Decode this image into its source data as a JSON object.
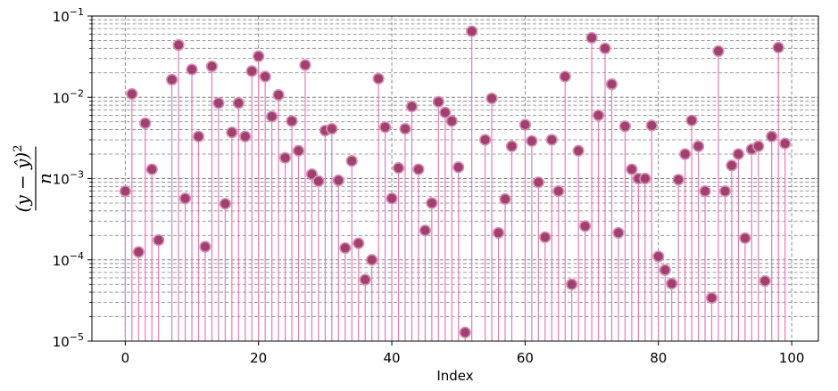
{
  "chart_data": {
    "type": "stem",
    "xlabel": "Index",
    "ylabel": {
      "numerator": "(y − ŷ)",
      "exponent": "2",
      "denominator": "n"
    },
    "yscale": "log",
    "xlim": [
      -5,
      104
    ],
    "ylim": [
      1e-05,
      0.1
    ],
    "x_ticks": [
      0,
      20,
      40,
      60,
      80,
      100
    ],
    "y_ticks": [
      {
        "value": 1e-05,
        "base": "10",
        "exp": "−5"
      },
      {
        "value": 0.0001,
        "base": "10",
        "exp": "−4"
      },
      {
        "value": 0.001,
        "base": "10",
        "exp": "−3"
      },
      {
        "value": 0.01,
        "base": "10",
        "exp": "−2"
      },
      {
        "value": 0.1,
        "base": "10",
        "exp": "−1"
      }
    ],
    "grid": "major and minor, dashed gray",
    "colors": {
      "stem": "#e07fb8",
      "marker_fill": "#a0406e",
      "marker_edge": "#d88fb6",
      "grid": "#808080"
    },
    "x": [
      0,
      1,
      2,
      3,
      4,
      5,
      6,
      7,
      8,
      9,
      10,
      11,
      12,
      13,
      14,
      15,
      16,
      17,
      18,
      19,
      20,
      21,
      22,
      23,
      24,
      25,
      26,
      27,
      28,
      29,
      30,
      31,
      32,
      33,
      34,
      35,
      36,
      37,
      38,
      39,
      40,
      41,
      42,
      43,
      44,
      45,
      46,
      47,
      48,
      49,
      50,
      51,
      52,
      53,
      54,
      55,
      56,
      57,
      58,
      59,
      60,
      61,
      62,
      63,
      64,
      65,
      66,
      67,
      68,
      69,
      70,
      71,
      72,
      73,
      74,
      75,
      76,
      77,
      78,
      79,
      80,
      81,
      82,
      83,
      84,
      85,
      86,
      87,
      88,
      89,
      90,
      91,
      92,
      93,
      94,
      95,
      96,
      97,
      98,
      99
    ],
    "values": [
      0.0007,
      0.011,
      0.000125,
      0.0048,
      0.0013,
      0.000175,
      null,
      0.0165,
      0.044,
      0.00057,
      0.022,
      0.0033,
      0.000145,
      0.024,
      0.0085,
      0.00049,
      0.0037,
      0.0085,
      0.0033,
      0.021,
      0.032,
      0.018,
      0.0058,
      0.0107,
      0.0018,
      0.0051,
      0.0022,
      0.025,
      0.00113,
      0.00093,
      0.0039,
      0.0041,
      0.00095,
      0.00014,
      0.00165,
      0.00016,
      5.7e-05,
      0.0001,
      0.017,
      0.0043,
      0.00057,
      0.00135,
      0.0041,
      0.0077,
      0.0013,
      0.00023,
      0.0005,
      0.0088,
      0.0065,
      0.0051,
      0.00138,
      1.28e-05,
      0.065,
      null,
      0.003,
      0.0097,
      0.000215,
      0.00056,
      0.0025,
      null,
      0.0046,
      0.0029,
      0.0009,
      0.00019,
      0.003,
      0.0007,
      0.018,
      5e-05,
      0.0022,
      0.00026,
      0.054,
      0.006,
      0.04,
      0.0145,
      0.000215,
      0.0044,
      0.0013,
      0.001,
      0.001,
      0.0045,
      0.00011,
      7.5e-05,
      5.1e-05,
      0.00097,
      0.002,
      0.0052,
      0.0025,
      0.0007,
      3.4e-05,
      0.037,
      0.0007,
      0.00145,
      0.002,
      0.000185,
      0.0023,
      0.0025,
      5.5e-05,
      0.0033,
      0.041,
      0.0027
    ]
  }
}
